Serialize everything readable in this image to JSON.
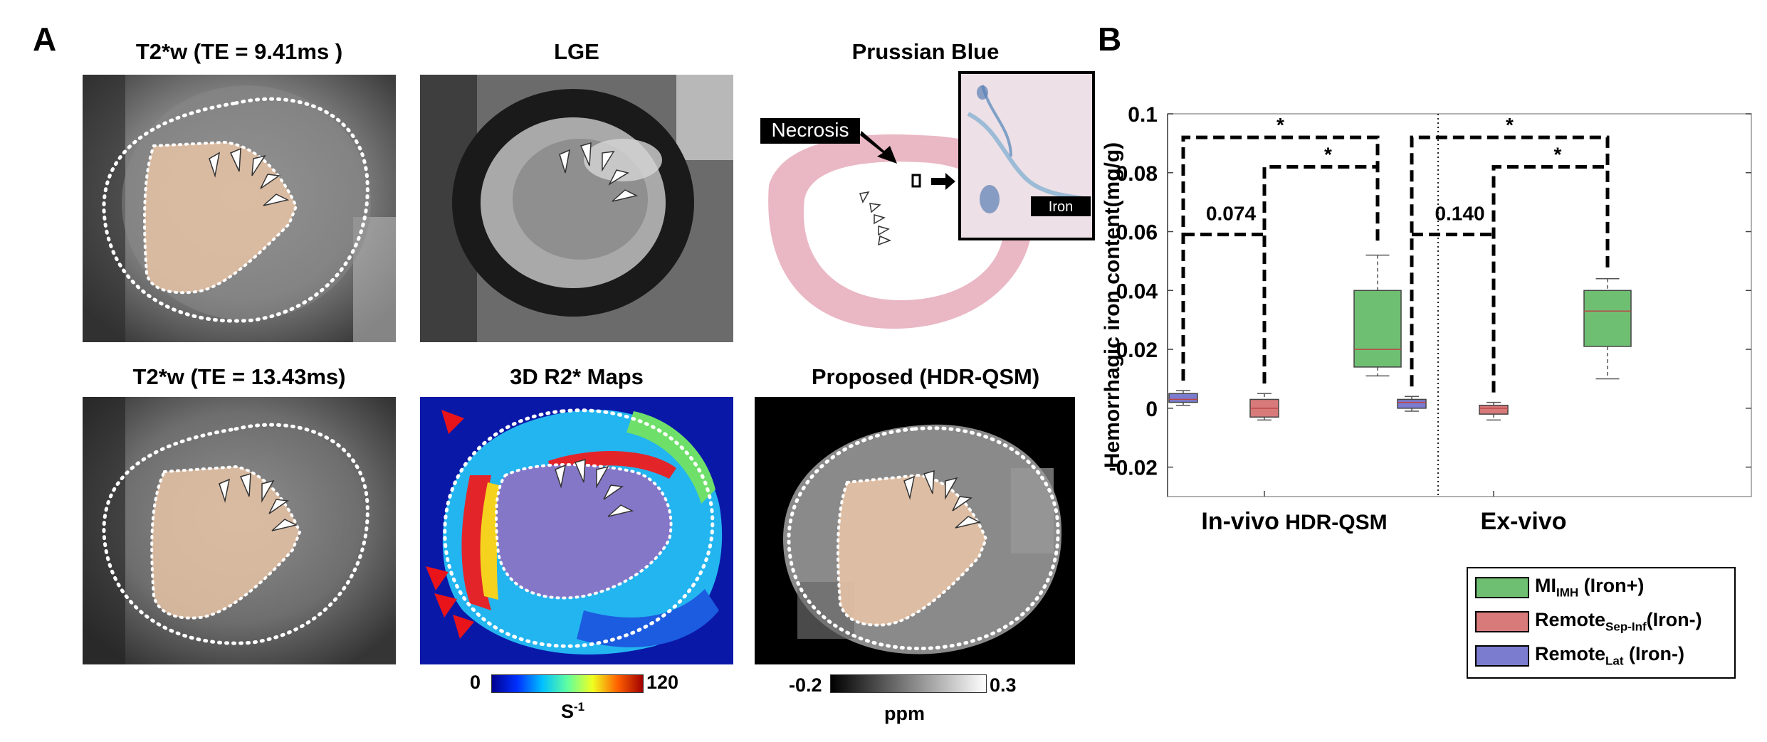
{
  "panel_a_letter": "A",
  "panel_b_letter": "B",
  "images": {
    "t2w_9": "T2*w (TE = 9.41ms )",
    "lge": "LGE",
    "prussian": "Prussian Blue",
    "t2w_13": "T2*w (TE = 13.43ms)",
    "r2star": "3D R2* Maps",
    "hdrqsm": "Proposed (HDR-QSM)"
  },
  "histology": {
    "necrosis_label": "Necrosis",
    "iron_label": "Iron"
  },
  "colorbars": {
    "r2_min": "0",
    "r2_max": "120",
    "r2_unit": "S",
    "r2_unit_exp": "-1",
    "qsm_min": "-0.2",
    "qsm_max": "0.3",
    "qsm_unit": "ppm"
  },
  "colors": {
    "green": "#6fbf73",
    "red": "#d87a7a",
    "blue": "#7b7ccf",
    "arrow_red": "#e8141a"
  },
  "chart_data": {
    "type": "box",
    "ylabel": "Hemorrhagic iron content(mg/g)",
    "ylim": [
      -0.03,
      0.1
    ],
    "yticks": [
      "0.1",
      "0.08",
      "0.06",
      "0.04",
      "0.02",
      "0",
      "-0.02"
    ],
    "groups": [
      {
        "label": "In-vivo HDR-QSM",
        "label_main": "In-vivo",
        "label_small": "HDR-QSM",
        "p_value": "0.074",
        "sig_marks": [
          "*",
          "*"
        ],
        "boxes": [
          {
            "series": "Remote_Lat",
            "whisker_low": 0.001,
            "q1": 0.002,
            "median": 0.003,
            "q3": 0.005,
            "whisker_high": 0.006
          },
          {
            "series": "Remote_Sep-Inf",
            "whisker_low": -0.004,
            "q1": -0.003,
            "median": 0.0,
            "q3": 0.003,
            "whisker_high": 0.005
          },
          {
            "series": "MI_IMH",
            "whisker_low": 0.011,
            "q1": 0.014,
            "median": 0.02,
            "q3": 0.04,
            "whisker_high": 0.052
          }
        ]
      },
      {
        "label": "Ex-vivo",
        "label_main": "Ex-vivo",
        "label_small": "",
        "p_value": "0.140",
        "sig_marks": [
          "*",
          "*"
        ],
        "boxes": [
          {
            "series": "Remote_Lat",
            "whisker_low": -0.001,
            "q1": 0.0,
            "median": 0.002,
            "q3": 0.003,
            "whisker_high": 0.004
          },
          {
            "series": "Remote_Sep-Inf",
            "whisker_low": -0.004,
            "q1": -0.002,
            "median": 0.0,
            "q3": 0.001,
            "whisker_high": 0.002
          },
          {
            "series": "MI_IMH",
            "whisker_low": 0.01,
            "q1": 0.021,
            "median": 0.033,
            "q3": 0.04,
            "whisker_high": 0.044
          }
        ]
      }
    ],
    "legend": [
      {
        "main": "MI",
        "sub": "IMH",
        "rest": " (Iron+)",
        "color": "#6fbf73"
      },
      {
        "main": "Remote",
        "sub": "Sep-Inf",
        "rest": "(Iron-)",
        "color": "#d87a7a"
      },
      {
        "main": "Remote",
        "sub": "Lat",
        "rest": " (Iron-)",
        "color": "#7b7ccf"
      }
    ]
  }
}
